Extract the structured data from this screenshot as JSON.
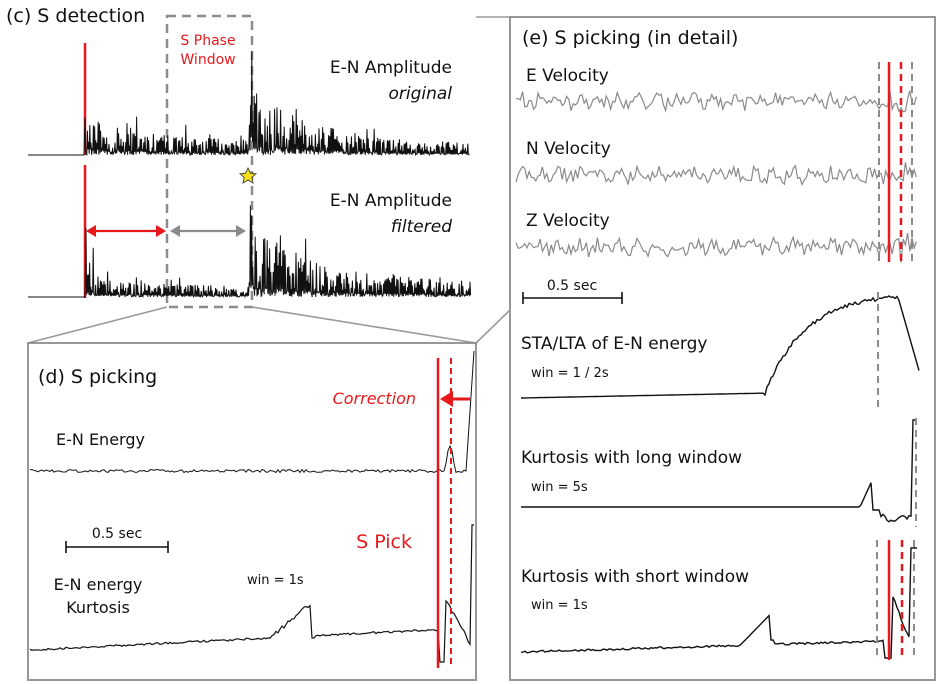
{
  "panel_c": {
    "title": "(c) S detection",
    "window_label_line1": "S Phase",
    "window_label_line2": "Window",
    "trace1_label": "E-N Amplitude",
    "trace1_sub": "original",
    "trace2_label": "E-N Amplitude",
    "trace2_sub": "filtered"
  },
  "panel_d": {
    "title": "(d) S picking",
    "correction_label": "Correction",
    "energy_label": "E-N Energy",
    "scale_label": "0.5 sec",
    "spick_label": "S Pick",
    "kurtosis_label_line1": "E-N energy",
    "kurtosis_label_line2": "Kurtosis",
    "win_label": "win = 1s"
  },
  "panel_e": {
    "title": "(e) S picking (in detail)",
    "e_velocity_label": "E Velocity",
    "n_velocity_label": "N Velocity",
    "z_velocity_label": "Z Velocity",
    "scale_label": "0.5 sec",
    "stalta_label": "STA/LTA of E-N energy",
    "stalta_win": "win = 1 / 2s",
    "kurt_long_label": "Kurtosis with long window",
    "kurt_long_win": "win = 5s",
    "kurt_short_label": "Kurtosis with short window",
    "kurt_short_win": "win = 1s"
  },
  "colors": {
    "pick": "#e8191c",
    "window": "#8c8c8c",
    "trace": "#111111",
    "velocity": "#8a8a8a",
    "star": "#f5e21c"
  }
}
